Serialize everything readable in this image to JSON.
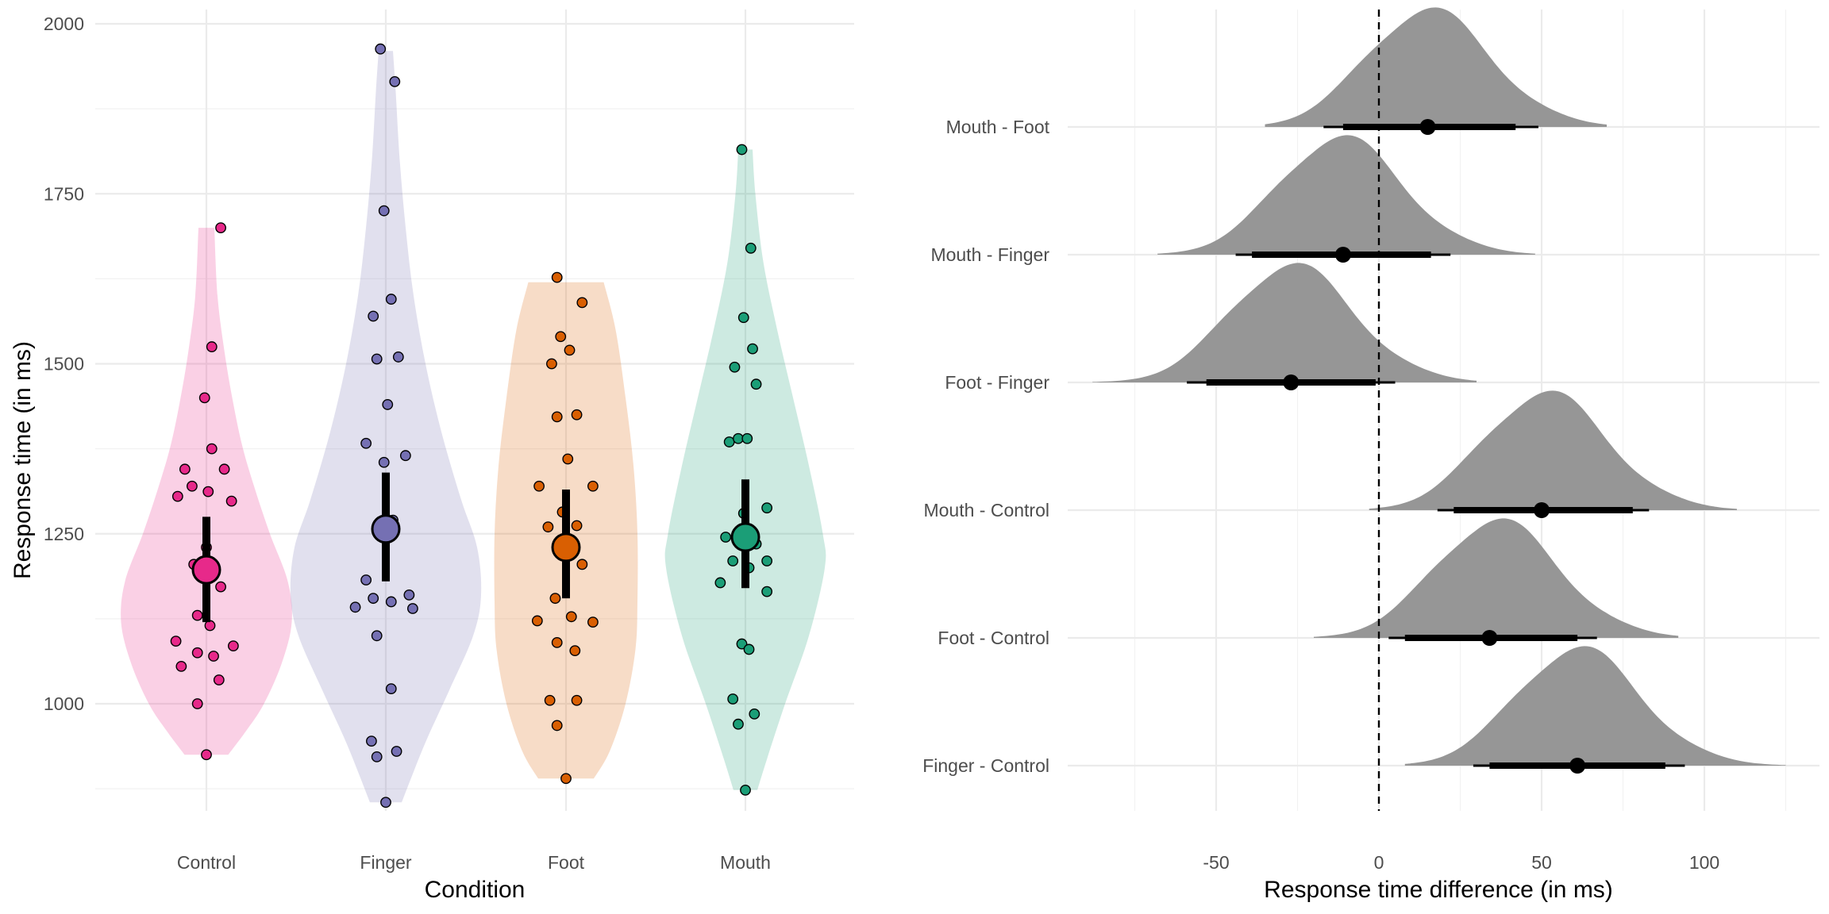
{
  "chart_data": [
    {
      "type": "violin",
      "title": "",
      "xlabel": "Condition",
      "ylabel": "Response time (in ms)",
      "ylim": [
        850,
        2020
      ],
      "yticks": [
        1000,
        1250,
        1500,
        1750,
        2000
      ],
      "grid": true,
      "legend": "none",
      "categories": [
        "Control",
        "Finger",
        "Foot",
        "Mouth"
      ],
      "series": [
        {
          "category": "Control",
          "color": "#E7298A",
          "mean": 1197,
          "ci": [
            1120,
            1275
          ],
          "violin": [
            [
              925,
              55
            ],
            [
              960,
              100
            ],
            [
              1000,
              145
            ],
            [
              1060,
              190
            ],
            [
              1120,
              215
            ],
            [
              1180,
              205
            ],
            [
              1250,
              160
            ],
            [
              1320,
              120
            ],
            [
              1380,
              90
            ],
            [
              1450,
              65
            ],
            [
              1520,
              45
            ],
            [
              1600,
              28
            ],
            [
              1700,
              20
            ]
          ],
          "points": [
            {
              "x": 0.08,
              "y": 1700
            },
            {
              "x": 0.03,
              "y": 1525
            },
            {
              "x": -0.01,
              "y": 1450
            },
            {
              "x": 0.03,
              "y": 1375
            },
            {
              "x": -0.12,
              "y": 1345
            },
            {
              "x": 0.1,
              "y": 1345
            },
            {
              "x": -0.08,
              "y": 1320
            },
            {
              "x": 0.01,
              "y": 1312
            },
            {
              "x": -0.16,
              "y": 1305
            },
            {
              "x": 0.14,
              "y": 1298
            },
            {
              "x": 0.0,
              "y": 1230
            },
            {
              "x": -0.07,
              "y": 1205
            },
            {
              "x": 0.08,
              "y": 1172
            },
            {
              "x": -0.05,
              "y": 1130
            },
            {
              "x": 0.02,
              "y": 1115
            },
            {
              "x": -0.17,
              "y": 1092
            },
            {
              "x": 0.15,
              "y": 1085
            },
            {
              "x": -0.05,
              "y": 1075
            },
            {
              "x": 0.04,
              "y": 1070
            },
            {
              "x": -0.14,
              "y": 1055
            },
            {
              "x": 0.07,
              "y": 1035
            },
            {
              "x": -0.05,
              "y": 1000
            },
            {
              "x": 0.0,
              "y": 925
            }
          ]
        },
        {
          "category": "Finger",
          "color": "#7570B3",
          "mean": 1257,
          "ci": [
            1180,
            1340
          ],
          "violin": [
            [
              855,
              40
            ],
            [
              900,
              70
            ],
            [
              950,
              105
            ],
            [
              1020,
              160
            ],
            [
              1100,
              220
            ],
            [
              1160,
              240
            ],
            [
              1230,
              230
            ],
            [
              1300,
              190
            ],
            [
              1400,
              140
            ],
            [
              1500,
              100
            ],
            [
              1600,
              70
            ],
            [
              1700,
              50
            ],
            [
              1800,
              35
            ],
            [
              1900,
              25
            ],
            [
              1960,
              18
            ]
          ],
          "points": [
            {
              "x": -0.03,
              "y": 1963
            },
            {
              "x": 0.05,
              "y": 1915
            },
            {
              "x": -0.01,
              "y": 1725
            },
            {
              "x": 0.03,
              "y": 1595
            },
            {
              "x": -0.07,
              "y": 1570
            },
            {
              "x": -0.05,
              "y": 1507
            },
            {
              "x": 0.07,
              "y": 1510
            },
            {
              "x": 0.01,
              "y": 1440
            },
            {
              "x": -0.11,
              "y": 1383
            },
            {
              "x": 0.11,
              "y": 1365
            },
            {
              "x": -0.01,
              "y": 1355
            },
            {
              "x": 0.04,
              "y": 1270
            },
            {
              "x": -0.11,
              "y": 1182
            },
            {
              "x": 0.13,
              "y": 1160
            },
            {
              "x": -0.07,
              "y": 1155
            },
            {
              "x": 0.03,
              "y": 1150
            },
            {
              "x": -0.17,
              "y": 1142
            },
            {
              "x": 0.15,
              "y": 1140
            },
            {
              "x": -0.05,
              "y": 1100
            },
            {
              "x": 0.03,
              "y": 1022
            },
            {
              "x": -0.08,
              "y": 945
            },
            {
              "x": 0.06,
              "y": 930
            },
            {
              "x": -0.05,
              "y": 922
            },
            {
              "x": 0.0,
              "y": 855
            }
          ]
        },
        {
          "category": "Foot",
          "color": "#D95F02",
          "mean": 1230,
          "ci": [
            1155,
            1315
          ],
          "violin": [
            [
              890,
              70
            ],
            [
              930,
              110
            ],
            [
              1000,
              150
            ],
            [
              1080,
              175
            ],
            [
              1150,
              180
            ],
            [
              1250,
              180
            ],
            [
              1350,
              170
            ],
            [
              1450,
              150
            ],
            [
              1550,
              125
            ],
            [
              1620,
              95
            ]
          ],
          "points": [
            {
              "x": -0.05,
              "y": 1627
            },
            {
              "x": 0.09,
              "y": 1590
            },
            {
              "x": -0.03,
              "y": 1540
            },
            {
              "x": 0.02,
              "y": 1520
            },
            {
              "x": -0.08,
              "y": 1500
            },
            {
              "x": 0.06,
              "y": 1425
            },
            {
              "x": -0.05,
              "y": 1422
            },
            {
              "x": 0.01,
              "y": 1360
            },
            {
              "x": -0.15,
              "y": 1320
            },
            {
              "x": 0.15,
              "y": 1320
            },
            {
              "x": -0.02,
              "y": 1282
            },
            {
              "x": -0.1,
              "y": 1260
            },
            {
              "x": 0.06,
              "y": 1262
            },
            {
              "x": 0.09,
              "y": 1205
            },
            {
              "x": -0.06,
              "y": 1155
            },
            {
              "x": -0.16,
              "y": 1122
            },
            {
              "x": 0.03,
              "y": 1128
            },
            {
              "x": 0.15,
              "y": 1120
            },
            {
              "x": -0.05,
              "y": 1090
            },
            {
              "x": 0.05,
              "y": 1078
            },
            {
              "x": -0.09,
              "y": 1005
            },
            {
              "x": 0.06,
              "y": 1005
            },
            {
              "x": -0.05,
              "y": 968
            },
            {
              "x": 0.0,
              "y": 890
            }
          ]
        },
        {
          "category": "Mouth",
          "color": "#1B9E77",
          "mean": 1245,
          "ci": [
            1170,
            1330
          ],
          "violin": [
            [
              873,
              30
            ],
            [
              920,
              55
            ],
            [
              1000,
              100
            ],
            [
              1100,
              160
            ],
            [
              1200,
              200
            ],
            [
              1250,
              195
            ],
            [
              1350,
              160
            ],
            [
              1450,
              120
            ],
            [
              1550,
              80
            ],
            [
              1650,
              45
            ],
            [
              1750,
              25
            ],
            [
              1815,
              18
            ]
          ],
          "points": [
            {
              "x": -0.02,
              "y": 1815
            },
            {
              "x": 0.03,
              "y": 1670
            },
            {
              "x": -0.01,
              "y": 1568
            },
            {
              "x": 0.04,
              "y": 1522
            },
            {
              "x": -0.06,
              "y": 1495
            },
            {
              "x": 0.06,
              "y": 1470
            },
            {
              "x": -0.09,
              "y": 1385
            },
            {
              "x": -0.04,
              "y": 1390
            },
            {
              "x": 0.01,
              "y": 1390
            },
            {
              "x": 0.12,
              "y": 1288
            },
            {
              "x": -0.01,
              "y": 1280
            },
            {
              "x": -0.11,
              "y": 1245
            },
            {
              "x": 0.06,
              "y": 1235
            },
            {
              "x": -0.07,
              "y": 1210
            },
            {
              "x": 0.12,
              "y": 1210
            },
            {
              "x": 0.02,
              "y": 1200
            },
            {
              "x": -0.14,
              "y": 1178
            },
            {
              "x": 0.12,
              "y": 1165
            },
            {
              "x": -0.02,
              "y": 1088
            },
            {
              "x": 0.02,
              "y": 1080
            },
            {
              "x": -0.07,
              "y": 1007
            },
            {
              "x": 0.05,
              "y": 985
            },
            {
              "x": -0.04,
              "y": 970
            },
            {
              "x": 0.0,
              "y": 873
            }
          ]
        }
      ]
    },
    {
      "type": "halfeye",
      "title": "",
      "xlabel": "Response time difference (in ms)",
      "ylabel": "",
      "xlim": [
        -100,
        135
      ],
      "xticks": [
        -50,
        0,
        50,
        100
      ],
      "reference_line": 0,
      "grid": true,
      "legend": "none",
      "fill_color": "#969696",
      "comparisons": [
        {
          "label": "Mouth - Foot",
          "median": 15,
          "interval_66": [
            -11,
            42
          ],
          "interval_95": [
            -17,
            49
          ],
          "density_range": [
            -35,
            70
          ],
          "peak": 14,
          "sd_left": 18,
          "sd_right": 20
        },
        {
          "label": "Mouth - Finger",
          "median": -11,
          "interval_66": [
            -39,
            16
          ],
          "interval_95": [
            -44,
            22
          ],
          "density_range": [
            -68,
            48
          ],
          "peak": -13,
          "sd_left": 18,
          "sd_right": 20
        },
        {
          "label": "Foot - Finger",
          "median": -27,
          "interval_66": [
            -53,
            -1
          ],
          "interval_95": [
            -59,
            5
          ],
          "density_range": [
            -88,
            30
          ],
          "peak": -28,
          "sd_left": 18,
          "sd_right": 20
        },
        {
          "label": "Mouth - Control",
          "median": 50,
          "interval_66": [
            23,
            78
          ],
          "interval_95": [
            18,
            83
          ],
          "density_range": [
            -3,
            110
          ],
          "peak": 50,
          "sd_left": 18,
          "sd_right": 20
        },
        {
          "label": "Foot - Control",
          "median": 34,
          "interval_66": [
            8,
            61
          ],
          "interval_95": [
            3,
            67
          ],
          "density_range": [
            -20,
            92
          ],
          "peak": 35,
          "sd_left": 18,
          "sd_right": 20
        },
        {
          "label": "Finger - Control",
          "median": 61,
          "interval_66": [
            34,
            88
          ],
          "interval_95": [
            29,
            94
          ],
          "density_range": [
            8,
            125
          ],
          "peak": 60,
          "sd_left": 18,
          "sd_right": 20
        }
      ]
    }
  ]
}
